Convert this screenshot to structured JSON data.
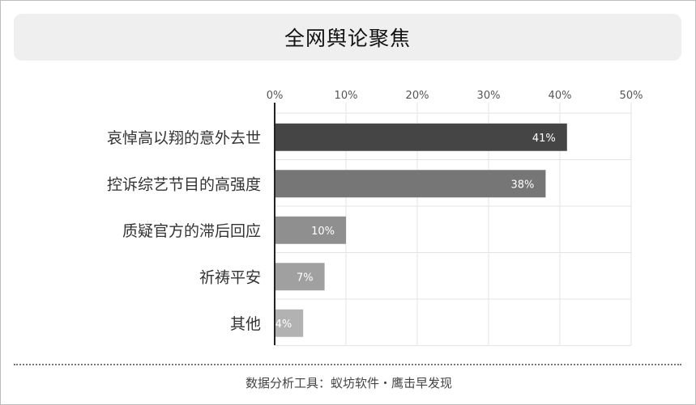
{
  "title": "全网舆论聚焦",
  "footer": "数据分析工具：蚁坊软件・鹰击早发现",
  "chart_data": {
    "type": "bar",
    "orientation": "horizontal",
    "title": "全网舆论聚焦",
    "xlabel": "",
    "ylabel": "",
    "xlim": [
      0,
      50
    ],
    "x_ticks": [
      "0%",
      "10%",
      "20%",
      "30%",
      "40%",
      "50%"
    ],
    "x_tick_values": [
      0,
      10,
      20,
      30,
      40,
      50
    ],
    "x_axis_position": "top",
    "grid": "vertical",
    "categories": [
      "哀悼高以翔的意外去世",
      "控诉综艺节目的高强度",
      "质疑官方的滞后回应",
      "祈祷平安",
      "其他"
    ],
    "values": [
      41,
      38,
      10,
      7,
      4
    ],
    "value_labels": [
      "41%",
      "38%",
      "10%",
      "7%",
      "4%"
    ],
    "colors": [
      "#454545",
      "#767676",
      "#8f8f8f",
      "#a0a0a0",
      "#b2b2b2"
    ]
  }
}
